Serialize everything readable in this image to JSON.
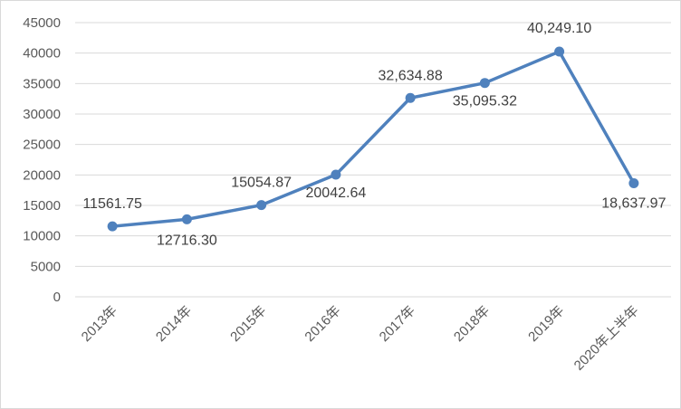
{
  "chart_data": {
    "type": "line",
    "categories": [
      "2013年",
      "2014年",
      "2015年",
      "2016年",
      "2017年",
      "2018年",
      "2019年",
      "2020年上半年"
    ],
    "series": [
      {
        "values": [
          11561.75,
          12716.3,
          15054.87,
          20042.64,
          32634.88,
          35095.32,
          40249.1,
          18637.97
        ],
        "labels": [
          "11561.75",
          "12716.30",
          "15054.87",
          "20042.64",
          "32,634.88",
          "35,095.32",
          "40,249.10",
          "18,637.97"
        ]
      }
    ],
    "ylim": [
      0,
      45000
    ],
    "yticks": [
      "0",
      "5000",
      "10000",
      "15000",
      "20000",
      "25000",
      "30000",
      "35000",
      "40000",
      "45000"
    ],
    "grid": true,
    "colors": {
      "line": "#4f81bd",
      "grid": "#d9d9d9",
      "text": "#595959"
    }
  }
}
